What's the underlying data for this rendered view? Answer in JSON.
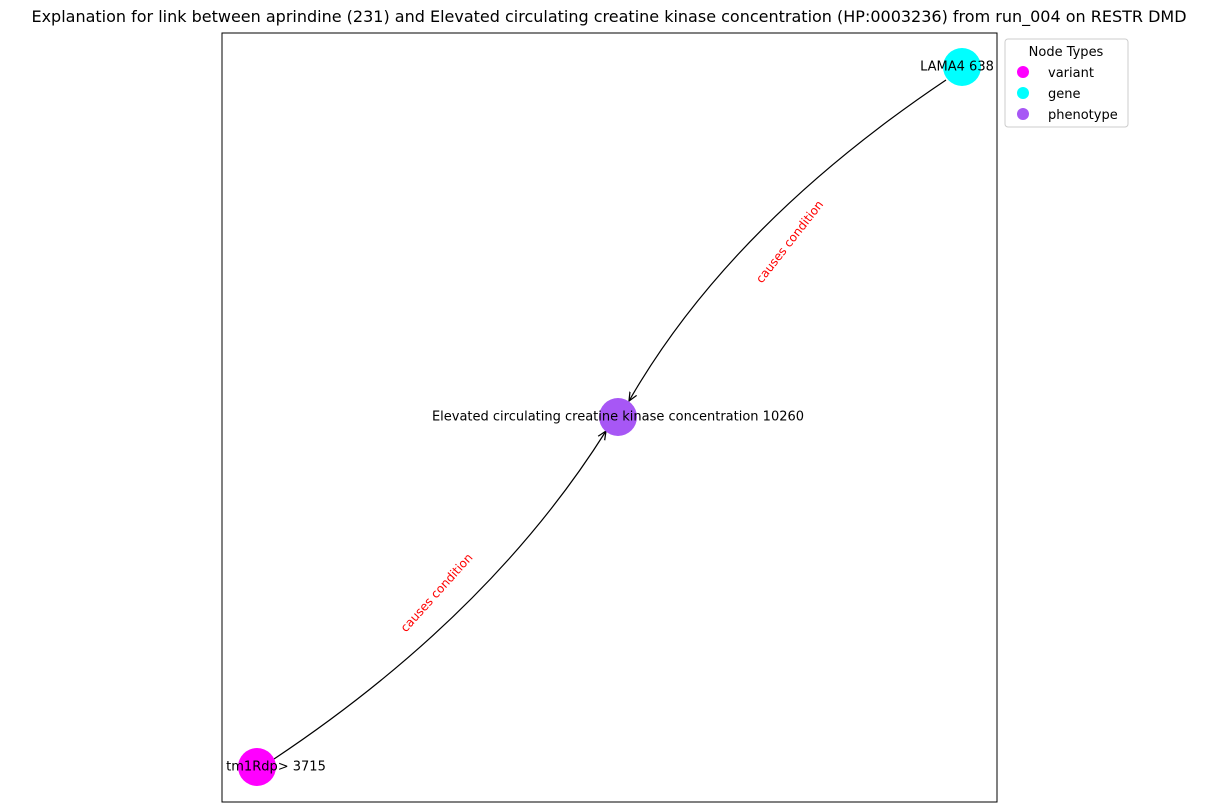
{
  "title": "Explanation for link between aprindine (231) and Elevated circulating creatine kinase concentration (HP:0003236) from run_004 on RESTR DMD",
  "colors": {
    "variant": "#ff00ff",
    "gene": "#00ffff",
    "phenotype": "#a757f5",
    "edge": "#000000",
    "edge_label": "#ff0000"
  },
  "nodes": [
    {
      "id": "gene",
      "label": "LAMA4 638",
      "type": "gene"
    },
    {
      "id": "phenotype",
      "label": "Elevated circulating creatine kinase concentration 10260",
      "type": "phenotype"
    },
    {
      "id": "variant",
      "label": "tm1Rdp> 3715",
      "type": "variant"
    }
  ],
  "edges": [
    {
      "from": "gene",
      "to": "phenotype",
      "label": "causes condition"
    },
    {
      "from": "variant",
      "to": "phenotype",
      "label": "causes condition"
    }
  ],
  "legend": {
    "title": "Node Types",
    "items": [
      {
        "label": "variant",
        "type": "variant"
      },
      {
        "label": "gene",
        "type": "gene"
      },
      {
        "label": "phenotype",
        "type": "phenotype"
      }
    ]
  }
}
